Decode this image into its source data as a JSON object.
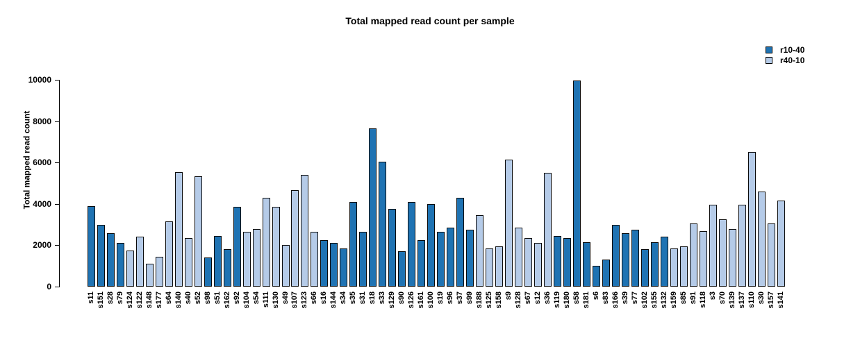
{
  "chart_data": {
    "type": "bar",
    "title": "Total mapped read count per sample",
    "ylabel": "Total mapped read count",
    "xlabel": "",
    "ylim": [
      0,
      10000
    ],
    "yticks": [
      0,
      2000,
      4000,
      6000,
      8000,
      10000
    ],
    "grid": false,
    "legend_position": "top-right",
    "legend": [
      {
        "name": "r10-40",
        "color": "#1f73b3"
      },
      {
        "name": "r40-10",
        "color": "#b5cbe8"
      }
    ],
    "bars": [
      {
        "label": "s11",
        "value": 3900,
        "group": "r10-40"
      },
      {
        "label": "s151",
        "value": 3000,
        "group": "r10-40"
      },
      {
        "label": "s28",
        "value": 2600,
        "group": "r10-40"
      },
      {
        "label": "s79",
        "value": 2100,
        "group": "r10-40"
      },
      {
        "label": "s124",
        "value": 1750,
        "group": "r40-10"
      },
      {
        "label": "s122",
        "value": 2400,
        "group": "r40-10"
      },
      {
        "label": "s148",
        "value": 1100,
        "group": "r40-10"
      },
      {
        "label": "s177",
        "value": 1450,
        "group": "r40-10"
      },
      {
        "label": "s64",
        "value": 3150,
        "group": "r40-10"
      },
      {
        "label": "s140",
        "value": 5550,
        "group": "r40-10"
      },
      {
        "label": "s40",
        "value": 2350,
        "group": "r40-10"
      },
      {
        "label": "s52",
        "value": 5350,
        "group": "r40-10"
      },
      {
        "label": "s98",
        "value": 1400,
        "group": "r10-40"
      },
      {
        "label": "s51",
        "value": 2450,
        "group": "r10-40"
      },
      {
        "label": "s162",
        "value": 1800,
        "group": "r10-40"
      },
      {
        "label": "s92",
        "value": 3850,
        "group": "r10-40"
      },
      {
        "label": "s104",
        "value": 2650,
        "group": "r40-10"
      },
      {
        "label": "s54",
        "value": 2800,
        "group": "r40-10"
      },
      {
        "label": "s111",
        "value": 4300,
        "group": "r40-10"
      },
      {
        "label": "s130",
        "value": 3850,
        "group": "r40-10"
      },
      {
        "label": "s49",
        "value": 2000,
        "group": "r40-10"
      },
      {
        "label": "s107",
        "value": 4650,
        "group": "r40-10"
      },
      {
        "label": "s123",
        "value": 5400,
        "group": "r40-10"
      },
      {
        "label": "s66",
        "value": 2650,
        "group": "r40-10"
      },
      {
        "label": "s16",
        "value": 2250,
        "group": "r10-40"
      },
      {
        "label": "s144",
        "value": 2100,
        "group": "r10-40"
      },
      {
        "label": "s34",
        "value": 1850,
        "group": "r10-40"
      },
      {
        "label": "s35",
        "value": 4100,
        "group": "r10-40"
      },
      {
        "label": "s31",
        "value": 2650,
        "group": "r10-40"
      },
      {
        "label": "s18",
        "value": 7650,
        "group": "r10-40"
      },
      {
        "label": "s33",
        "value": 6050,
        "group": "r10-40"
      },
      {
        "label": "s129",
        "value": 3750,
        "group": "r10-40"
      },
      {
        "label": "s90",
        "value": 1700,
        "group": "r10-40"
      },
      {
        "label": "s126",
        "value": 4100,
        "group": "r10-40"
      },
      {
        "label": "s161",
        "value": 2250,
        "group": "r10-40"
      },
      {
        "label": "s100",
        "value": 4000,
        "group": "r10-40"
      },
      {
        "label": "s19",
        "value": 2650,
        "group": "r10-40"
      },
      {
        "label": "s96",
        "value": 2850,
        "group": "r10-40"
      },
      {
        "label": "s37",
        "value": 4300,
        "group": "r10-40"
      },
      {
        "label": "s99",
        "value": 2750,
        "group": "r10-40"
      },
      {
        "label": "s188",
        "value": 3450,
        "group": "r40-10"
      },
      {
        "label": "s125",
        "value": 1850,
        "group": "r40-10"
      },
      {
        "label": "s158",
        "value": 1950,
        "group": "r40-10"
      },
      {
        "label": "s9",
        "value": 6150,
        "group": "r40-10"
      },
      {
        "label": "s128",
        "value": 2850,
        "group": "r40-10"
      },
      {
        "label": "s67",
        "value": 2350,
        "group": "r40-10"
      },
      {
        "label": "s12",
        "value": 2100,
        "group": "r40-10"
      },
      {
        "label": "s36",
        "value": 5500,
        "group": "r40-10"
      },
      {
        "label": "s119",
        "value": 2450,
        "group": "r10-40"
      },
      {
        "label": "s180",
        "value": 2350,
        "group": "r10-40"
      },
      {
        "label": "s58",
        "value": 9950,
        "group": "r10-40"
      },
      {
        "label": "s181",
        "value": 2150,
        "group": "r10-40"
      },
      {
        "label": "s6",
        "value": 1000,
        "group": "r10-40"
      },
      {
        "label": "s83",
        "value": 1300,
        "group": "r10-40"
      },
      {
        "label": "s166",
        "value": 3000,
        "group": "r10-40"
      },
      {
        "label": "s39",
        "value": 2600,
        "group": "r10-40"
      },
      {
        "label": "s77",
        "value": 2750,
        "group": "r10-40"
      },
      {
        "label": "s102",
        "value": 1800,
        "group": "r10-40"
      },
      {
        "label": "s155",
        "value": 2150,
        "group": "r10-40"
      },
      {
        "label": "s132",
        "value": 2400,
        "group": "r10-40"
      },
      {
        "label": "s159",
        "value": 1850,
        "group": "r40-10"
      },
      {
        "label": "s85",
        "value": 1950,
        "group": "r40-10"
      },
      {
        "label": "s91",
        "value": 3050,
        "group": "r40-10"
      },
      {
        "label": "s118",
        "value": 2700,
        "group": "r40-10"
      },
      {
        "label": "s3",
        "value": 3950,
        "group": "r40-10"
      },
      {
        "label": "s70",
        "value": 3250,
        "group": "r40-10"
      },
      {
        "label": "s139",
        "value": 2800,
        "group": "r40-10"
      },
      {
        "label": "s137",
        "value": 3950,
        "group": "r40-10"
      },
      {
        "label": "s110",
        "value": 6500,
        "group": "r40-10"
      },
      {
        "label": "s30",
        "value": 4600,
        "group": "r40-10"
      },
      {
        "label": "s157",
        "value": 3050,
        "group": "r40-10"
      },
      {
        "label": "s141",
        "value": 4150,
        "group": "r40-10"
      }
    ]
  }
}
